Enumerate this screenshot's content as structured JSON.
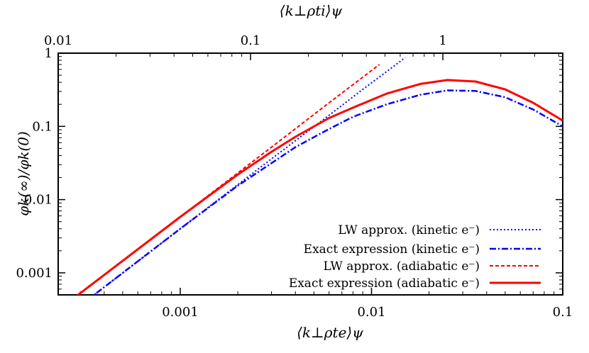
{
  "chart_data": {
    "type": "line",
    "xlabel": "⟨k⊥ρte⟩ψ",
    "x2label": "⟨k⊥ρti⟩ψ",
    "ylabel": "φk(∞)/φk(0)",
    "x_scale": "log",
    "y_scale": "log",
    "xlim": [
      0.00023,
      0.1
    ],
    "x2lim": [
      0.01,
      4.2
    ],
    "ylim": [
      0.0005,
      1
    ],
    "x_ticks": [
      0.001,
      0.01,
      0.1
    ],
    "x_tick_labels": [
      "0.001",
      "0.01",
      "0.1"
    ],
    "x2_ticks": [
      0.01,
      0.1,
      1
    ],
    "x2_tick_labels": [
      "0.01",
      "0.1",
      "1"
    ],
    "y_ticks": [
      0.001,
      0.01,
      0.1,
      1
    ],
    "y_tick_labels": [
      "0.001",
      "0.01",
      "0.1",
      "1"
    ],
    "grid": false,
    "legend_position": "bottom-right",
    "series": [
      {
        "name": "LW approx. (kinetic e⁻)",
        "color": "#0000ff",
        "dash": "dotted",
        "x": [
          0.00023,
          0.001,
          0.003,
          0.006,
          0.009,
          0.012,
          0.015
        ],
        "y": [
          0.00021,
          0.004,
          0.036,
          0.142,
          0.32,
          0.56,
          0.87
        ]
      },
      {
        "name": "Exact expression (kinetic e⁻)",
        "color": "#0000ff",
        "dash": "dash-dot",
        "x": [
          0.00023,
          0.001,
          0.002,
          0.004,
          0.006,
          0.008,
          0.012,
          0.018,
          0.025,
          0.035,
          0.05,
          0.07,
          0.1
        ],
        "y": [
          0.00021,
          0.004,
          0.0155,
          0.052,
          0.092,
          0.135,
          0.2,
          0.27,
          0.31,
          0.305,
          0.25,
          0.17,
          0.1
        ]
      },
      {
        "name": "LW approx. (adiabatic e⁻)",
        "color": "#ff0000",
        "dash": "dashed",
        "x": [
          0.00023,
          0.001,
          0.003,
          0.006,
          0.009,
          0.011
        ],
        "y": [
          0.00031,
          0.0058,
          0.052,
          0.21,
          0.47,
          0.7
        ]
      },
      {
        "name": "Exact expression (adiabatic e⁻)",
        "color": "#ff0000",
        "dash": "solid",
        "x": [
          0.00023,
          0.001,
          0.002,
          0.003,
          0.004,
          0.006,
          0.008,
          0.012,
          0.018,
          0.025,
          0.035,
          0.05,
          0.07,
          0.1
        ],
        "y": [
          0.00031,
          0.0058,
          0.022,
          0.045,
          0.072,
          0.13,
          0.18,
          0.28,
          0.38,
          0.43,
          0.41,
          0.32,
          0.21,
          0.12
        ]
      }
    ]
  }
}
